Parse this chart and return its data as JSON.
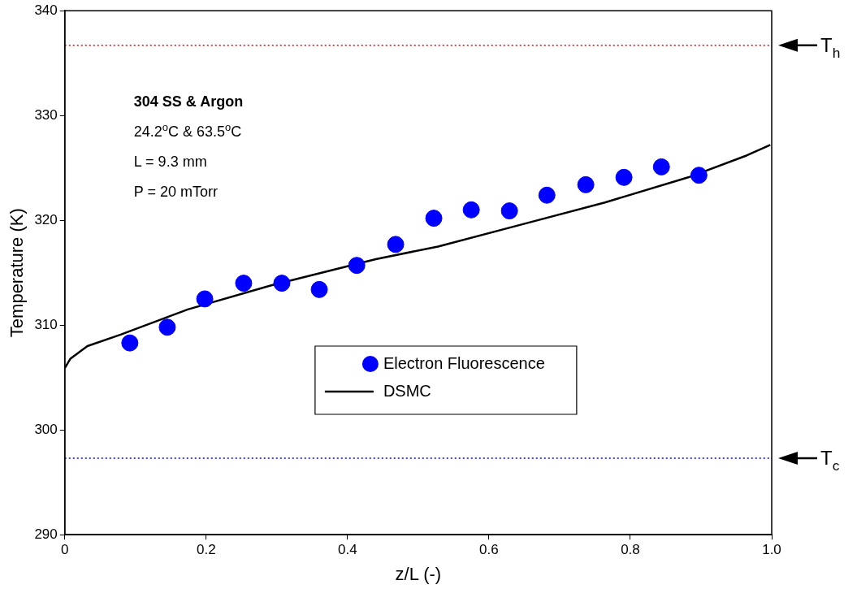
{
  "chart_data": {
    "type": "scatter",
    "xlabel": "z/L (-)",
    "ylabel": "Temperature (K)",
    "xlim": [
      0,
      1
    ],
    "xticks": [
      0,
      0.2,
      0.4,
      0.6,
      0.8,
      {
        "value": 1,
        "label": "1.0"
      }
    ],
    "ylim": [
      290,
      340
    ],
    "yticks": [
      290,
      300,
      310,
      320,
      330,
      340
    ],
    "grid": false,
    "legend": "center",
    "series": [
      {
        "name": "Electron Fluorescence",
        "marker": "circle",
        "color": "#0000ff",
        "x": [
          0.092,
          0.145,
          0.198,
          0.253,
          0.307,
          0.36,
          0.413,
          0.468,
          0.522,
          0.575,
          0.629,
          0.682,
          0.737,
          0.791,
          0.844,
          0.897
        ],
        "values": [
          308.3,
          309.8,
          312.5,
          314.0,
          314.0,
          313.4,
          315.7,
          317.7,
          320.2,
          321.0,
          320.9,
          322.4,
          323.4,
          324.1,
          325.1,
          324.3
        ]
      },
      {
        "name": "DSMC",
        "type": "line",
        "marker": "none",
        "color": "#000000",
        "line_style": "solid",
        "x": [
          0,
          0.008,
          0.032,
          0.079,
          0.174,
          0.292,
          0.44,
          0.528,
          0.646,
          0.764,
          0.882,
          0.965,
          0.998
        ],
        "values": [
          305.9,
          306.8,
          308.0,
          309.1,
          311.5,
          313.8,
          316.3,
          317.5,
          319.6,
          321.7,
          324.1,
          326.2,
          327.2
        ]
      }
    ],
    "ref_lines": [
      {
        "axis": "y",
        "value": 336.7,
        "label": "T$_{h}$",
        "color": "#ff0000",
        "line_style": "dotted"
      },
      {
        "axis": "y",
        "value": 297.3,
        "label": "T$_{c}$",
        "color": "#0000ff",
        "line_style": "dotted"
      }
    ],
    "annotations": [
      "304 SS & Argon",
      "24.2$^{o}$C & 63.5$^{o}$C",
      "L = 9.3 mm",
      "P = 20 mTorr"
    ]
  }
}
